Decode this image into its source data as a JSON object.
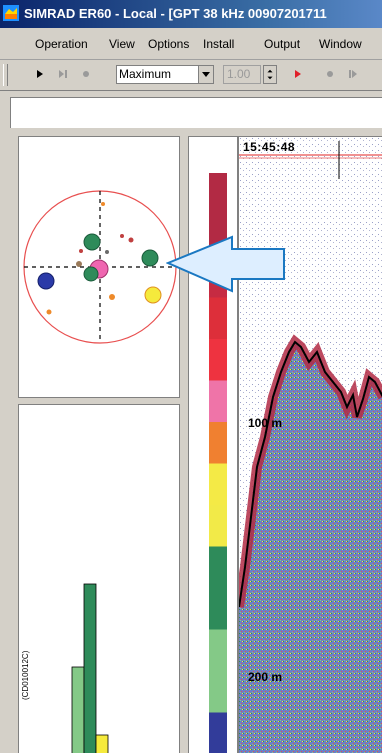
{
  "window": {
    "title": "SIMRAD ER60 - Local - [GPT  38 kHz 00907201711"
  },
  "menu": {
    "items": [
      {
        "label": "Operation"
      },
      {
        "label": "View"
      },
      {
        "label": "Options"
      },
      {
        "label": "Install"
      },
      {
        "label": "Output"
      },
      {
        "label": "Window"
      }
    ]
  },
  "toolbar": {
    "range_select": {
      "value": "Maximum"
    },
    "gain_field": {
      "value": "1.00"
    }
  },
  "echogram": {
    "time_label": "15:45:48",
    "depth_labels": [
      "100 m",
      "200 m"
    ]
  },
  "figure_code": "(CD010012C)",
  "colors": {
    "color_scale": [
      "#b22a44",
      "#b22a44",
      "#c62b42",
      "#dd2f3a",
      "#ee3340",
      "#ef74a8",
      "#f08030",
      "#f4ea46",
      "#f2ea48",
      "#2e8b5a",
      "#2e8b5a",
      "#84c987",
      "#84c987",
      "#323c9a"
    ],
    "arrow_fill": "#ddeeff",
    "arrow_stroke": "#1a78c2",
    "title_bar": "#0a246a"
  }
}
